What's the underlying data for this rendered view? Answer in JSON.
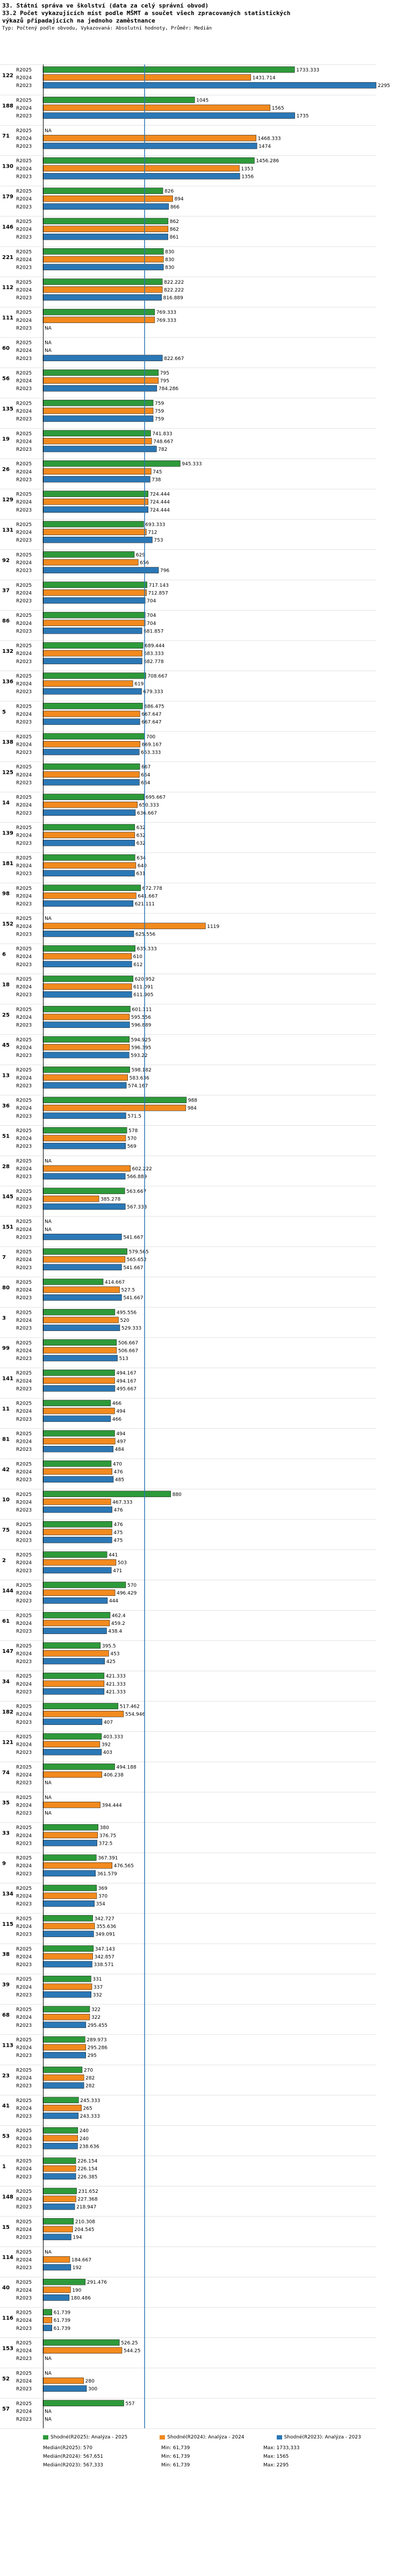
{
  "header": {
    "line1": "33. Státní správa ve školství (data za celý správní obvod)",
    "line2": "33.2 Počet vykazujících míst podle MŠMT a součet všech zpracovaných statistických",
    "line3": " výkazů připadajících na jednoho zaměstnance",
    "line4": "Typ: Počtený podle obvodu, Vykazovaná: Absolutní hodnoty, Průměr: Medián"
  },
  "colors": {
    "r2025": "#2e9a3a",
    "r2024": "#f28a1e",
    "r2023": "#2b78b6",
    "axis": "#000000",
    "median": "#2b78b6"
  },
  "chart_data": {
    "type": "bar",
    "orientation": "horizontal",
    "series": [
      {
        "name": "R2025",
        "color": "#2e9a3a"
      },
      {
        "name": "R2024",
        "color": "#f28a1e"
      },
      {
        "name": "R2023",
        "color": "#2b78b6"
      }
    ],
    "xlim": [
      0,
      2295
    ],
    "median": 700,
    "groups": [
      {
        "id": "122",
        "values": [
          1733.333,
          1431.714,
          2295
        ]
      },
      {
        "id": "188",
        "values": [
          1045,
          1565,
          1735
        ]
      },
      {
        "id": "71",
        "values": [
          null,
          1468.333,
          1474
        ]
      },
      {
        "id": "130",
        "values": [
          1456.286,
          1353,
          1356
        ]
      },
      {
        "id": "179",
        "values": [
          826,
          894,
          866
        ]
      },
      {
        "id": "146",
        "values": [
          862,
          862,
          861
        ]
      },
      {
        "id": "221",
        "values": [
          830,
          830,
          830
        ]
      },
      {
        "id": "112",
        "values": [
          822.222,
          822.222,
          816.889
        ]
      },
      {
        "id": "111",
        "values": [
          769.333,
          769.333,
          null
        ]
      },
      {
        "id": "60",
        "values": [
          null,
          null,
          822.667
        ]
      },
      {
        "id": "56",
        "values": [
          795,
          795,
          784.286
        ]
      },
      {
        "id": "135",
        "values": [
          759,
          759,
          759
        ]
      },
      {
        "id": "19",
        "values": [
          741.833,
          748.667,
          782
        ]
      },
      {
        "id": "26",
        "values": [
          945.333,
          745,
          738
        ]
      },
      {
        "id": "129",
        "values": [
          724.444,
          724.444,
          724.444
        ]
      },
      {
        "id": "131",
        "values": [
          693.333,
          712,
          753
        ]
      },
      {
        "id": "92",
        "values": [
          629,
          656,
          796
        ]
      },
      {
        "id": "37",
        "values": [
          717.143,
          712.857,
          704
        ]
      },
      {
        "id": "86",
        "values": [
          704,
          704,
          681.857
        ]
      },
      {
        "id": "132",
        "values": [
          689.444,
          683.333,
          682.778
        ]
      },
      {
        "id": "136",
        "values": [
          708.667,
          619,
          679.333
        ]
      },
      {
        "id": "5",
        "values": [
          686.475,
          667.647,
          667.647
        ]
      },
      {
        "id": "138",
        "values": [
          700,
          669.167,
          663.333
        ]
      },
      {
        "id": "125",
        "values": [
          667,
          664,
          664
        ]
      },
      {
        "id": "14",
        "values": [
          695.667,
          650.333,
          636.667
        ]
      },
      {
        "id": "139",
        "values": [
          632,
          632,
          632
        ]
      },
      {
        "id": "181",
        "values": [
          634,
          640,
          631
        ]
      },
      {
        "id": "98",
        "values": [
          672.778,
          641.667,
          621.111
        ]
      },
      {
        "id": "152",
        "values": [
          null,
          1119,
          625.556
        ]
      },
      {
        "id": "6",
        "values": [
          635.333,
          610,
          612
        ]
      },
      {
        "id": "18",
        "values": [
          620.952,
          611.091,
          611.905
        ]
      },
      {
        "id": "25",
        "values": [
          601.111,
          595.556,
          596.889
        ]
      },
      {
        "id": "45",
        "values": [
          594.925,
          596.395,
          593.22
        ]
      },
      {
        "id": "13",
        "values": [
          598.182,
          583.636,
          574.167
        ]
      },
      {
        "id": "36",
        "values": [
          988,
          984,
          571.5
        ]
      },
      {
        "id": "51",
        "values": [
          578,
          570,
          569
        ]
      },
      {
        "id": "28",
        "values": [
          null,
          602.222,
          566.889
        ]
      },
      {
        "id": "145",
        "values": [
          563.667,
          385.278,
          567.333
        ]
      },
      {
        "id": "151",
        "values": [
          null,
          null,
          541.667
        ]
      },
      {
        "id": "7",
        "values": [
          579.565,
          565.652,
          541.667
        ]
      },
      {
        "id": "80",
        "values": [
          414.667,
          527.5,
          541.667
        ]
      },
      {
        "id": "3",
        "values": [
          495.556,
          520,
          529.333
        ]
      },
      {
        "id": "99",
        "values": [
          506.667,
          506.667,
          513
        ]
      },
      {
        "id": "141",
        "values": [
          494.167,
          494.167,
          495.667
        ]
      },
      {
        "id": "11",
        "values": [
          466,
          494,
          466
        ]
      },
      {
        "id": "81",
        "values": [
          494,
          497,
          484
        ]
      },
      {
        "id": "42",
        "values": [
          470,
          476,
          485
        ]
      },
      {
        "id": "10",
        "values": [
          880,
          467.333,
          476
        ]
      },
      {
        "id": "75",
        "values": [
          476,
          475,
          475
        ]
      },
      {
        "id": "2",
        "values": [
          441,
          503,
          471
        ]
      },
      {
        "id": "144",
        "values": [
          570,
          496.429,
          444
        ]
      },
      {
        "id": "61",
        "values": [
          462.4,
          459.2,
          438.4
        ]
      },
      {
        "id": "147",
        "values": [
          395.5,
          453,
          425
        ]
      },
      {
        "id": "34",
        "values": [
          421.333,
          421.333,
          421.333
        ]
      },
      {
        "id": "182",
        "values": [
          517.462,
          554.946,
          407
        ]
      },
      {
        "id": "121",
        "values": [
          403.333,
          392,
          403
        ]
      },
      {
        "id": "74",
        "values": [
          494.188,
          406.238,
          null
        ]
      },
      {
        "id": "35",
        "values": [
          null,
          394.444,
          null
        ]
      },
      {
        "id": "33",
        "values": [
          380,
          376.75,
          372.5
        ]
      },
      {
        "id": "9",
        "values": [
          367.391,
          476.565,
          361.579
        ]
      },
      {
        "id": "134",
        "values": [
          369,
          370,
          354
        ]
      },
      {
        "id": "115",
        "values": [
          342.727,
          355.636,
          349.091
        ]
      },
      {
        "id": "38",
        "values": [
          347.143,
          342.857,
          338.571
        ]
      },
      {
        "id": "39",
        "values": [
          331,
          337,
          332
        ]
      },
      {
        "id": "68",
        "values": [
          322,
          322,
          295.455
        ]
      },
      {
        "id": "113",
        "values": [
          289.973,
          295.286,
          295
        ]
      },
      {
        "id": "23",
        "values": [
          270,
          282,
          282
        ]
      },
      {
        "id": "41",
        "values": [
          245.333,
          265,
          243.333
        ]
      },
      {
        "id": "53",
        "values": [
          240,
          240,
          238.636
        ]
      },
      {
        "id": "1",
        "values": [
          226.154,
          226.154,
          226.385
        ]
      },
      {
        "id": "148",
        "values": [
          231.652,
          227.368,
          218.947
        ]
      },
      {
        "id": "15",
        "values": [
          210.308,
          204.545,
          194
        ]
      },
      {
        "id": "114",
        "values": [
          null,
          184.667,
          192
        ]
      },
      {
        "id": "40",
        "values": [
          291.476,
          190,
          180.486
        ]
      },
      {
        "id": "116",
        "values": [
          61.739,
          61.739,
          61.739
        ]
      },
      {
        "id": "153",
        "values": [
          526.25,
          544.25,
          null
        ]
      },
      {
        "id": "52",
        "values": [
          null,
          280,
          300
        ]
      },
      {
        "id": "57",
        "values": [
          557,
          null,
          null
        ]
      }
    ]
  },
  "legend": {
    "items": [
      {
        "label": "Shodné(R2025): Analýza - 2025"
      },
      {
        "label": "Shodné(R2024): Analýza - 2024"
      },
      {
        "label": "Shodné(R2023): Analýza - 2023"
      }
    ],
    "stats": [
      [
        "Medián(R2025): 570",
        "Min: 61,739",
        "Max: 1733,333"
      ],
      [
        "Medián(R2024): 567,651",
        "Min: 61,739",
        "Max: 1565"
      ],
      [
        "Medián(R2023): 567,333",
        "Min: 61,739",
        "Max: 2295"
      ]
    ]
  }
}
